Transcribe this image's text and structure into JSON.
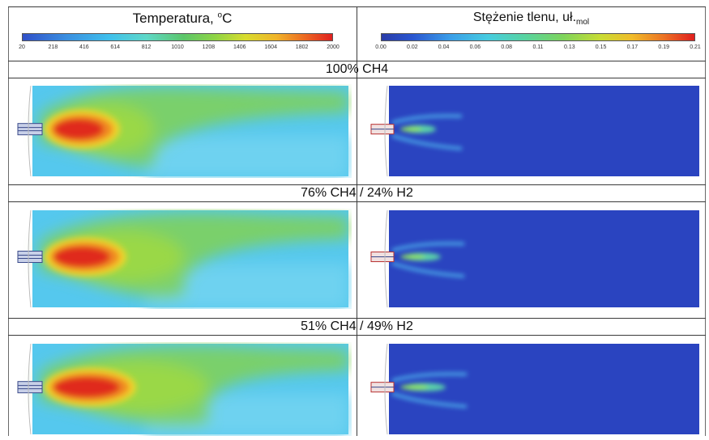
{
  "headers": {
    "left_title": "Temperatura, ",
    "left_title_unit": "oC",
    "right_title": "Stężenie tlenu, uł.",
    "right_title_sub": "mol"
  },
  "temperature_scale": {
    "ticks": [
      "20",
      "218",
      "416",
      "614",
      "812",
      "1010",
      "1208",
      "1406",
      "1604",
      "1802",
      "2000"
    ],
    "colors": [
      "#3050c8",
      "#3fc0ec",
      "#5cc66a",
      "#d8dc2e",
      "#ec6a22",
      "#e02020"
    ]
  },
  "oxygen_scale": {
    "ticks": [
      "0.00",
      "0.02",
      "0.04",
      "0.06",
      "0.08",
      "0.11",
      "0.13",
      "0.15",
      "0.17",
      "0.19",
      "0.21"
    ],
    "colors": [
      "#2a3ca8",
      "#3a9ee8",
      "#58d4a0",
      "#c8dc34",
      "#ec7424",
      "#e01e1e"
    ]
  },
  "cases": [
    {
      "label": "100% CH4"
    },
    {
      "label": "76% CH4 / 24% H2"
    },
    {
      "label": "51% CH4 / 49% H2"
    }
  ],
  "colors": {
    "temp_field_background": "#52c6ec",
    "oxygen_field_background": "#2a44c0",
    "grid_line": "#3a3a3a"
  }
}
